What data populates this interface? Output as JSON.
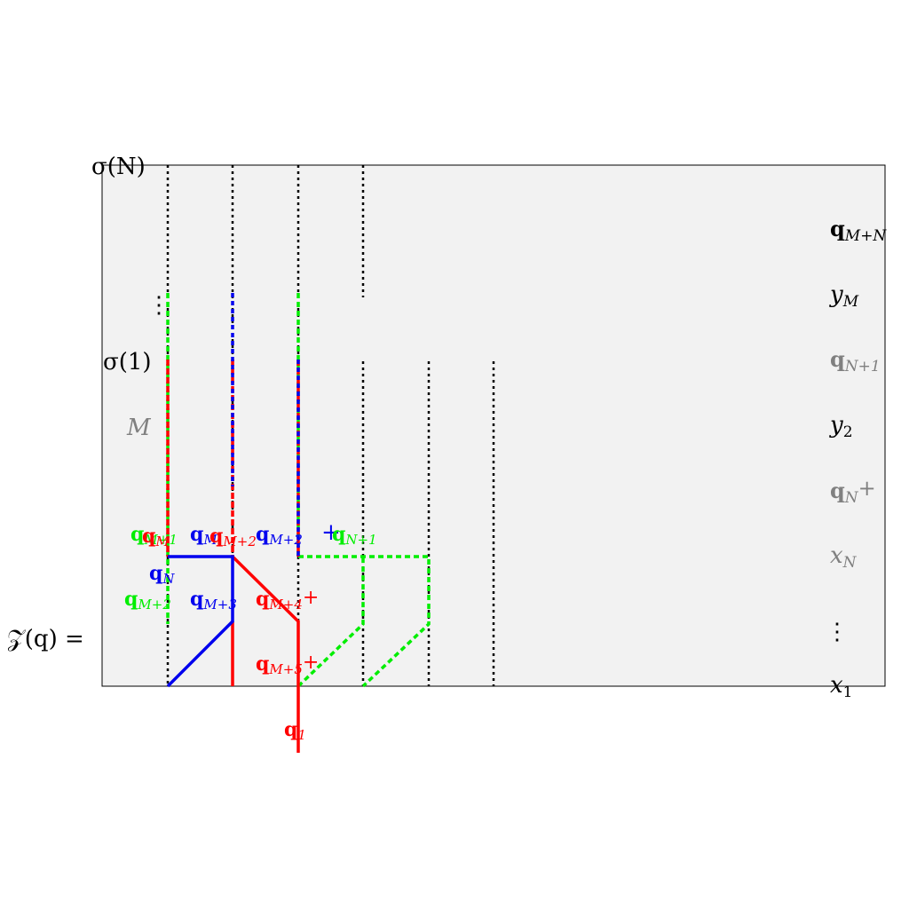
{
  "colors": {
    "background_panel": "#f2f2f2",
    "black": "#000000",
    "gray": "#808080",
    "red": "#ff0000",
    "blue": "#0000ee",
    "green": "#00ee00"
  },
  "left_labels": {
    "sigma_N": "σ(N)",
    "vdots": "⋮",
    "sigma_1": "σ(1)",
    "M": "M",
    "Z_q": "𝒵(q) ="
  },
  "right_labels": {
    "q_M_plus_N": "q",
    "q_M_plus_N_sub": "M+N",
    "y_M": "y",
    "y_M_sub": "M",
    "q_N_plus_1": "q",
    "q_N_plus_1_sub": "N+1",
    "y_2": "y",
    "y_2_sub": "2",
    "q_N_plus": "q",
    "q_N_plus_sub": "N",
    "q_N_plus_suffix": "+",
    "x_N": "x",
    "x_N_sub": "N",
    "vdots": "⋮",
    "x_1": "x",
    "x_1_sub": "1"
  },
  "path_labels": {
    "q_N": "q",
    "q_N_sub": "N",
    "q_M2": "q",
    "q_M2_sub": "M+2",
    "q_M3": "q",
    "q_M3_sub": "M+3",
    "q_M4": "q",
    "q_M4_sub": "M+4",
    "q_M4_plus": "+",
    "q_M5": "q",
    "q_M5_sub": "M+5",
    "q_M5_plus": "+",
    "q_1": "q",
    "q_1_sub": "1",
    "q_N1": "q",
    "q_N1_sub": "N+1",
    "q_overlap_1": "q",
    "q_overlap_1_sub": "M+1",
    "q_overlap_2": "q",
    "q_overlap_2_sub": "M",
    "q_overlap_3": "q",
    "q_overlap_3_sub": "M",
    "q_overlap_4": "q",
    "q_overlap_4_sub": "M+2",
    "q_overlap_plus": "+"
  }
}
